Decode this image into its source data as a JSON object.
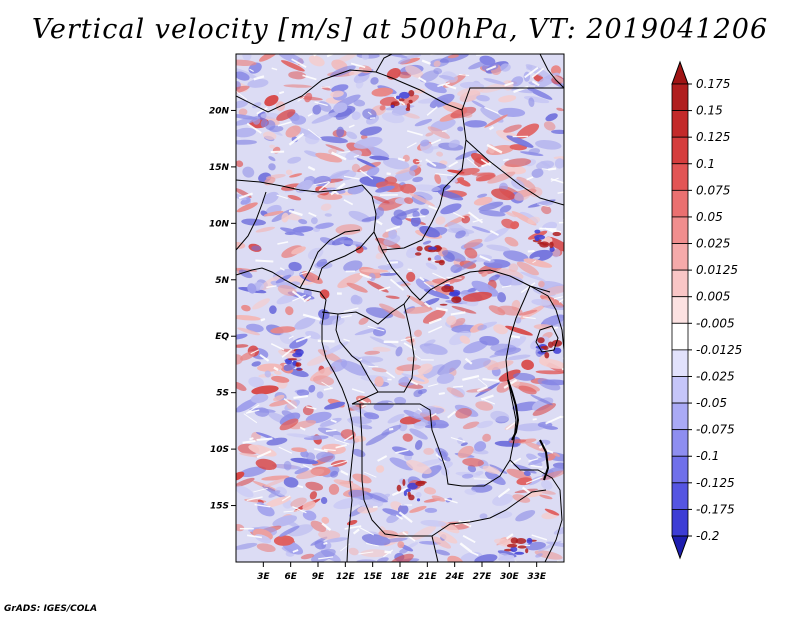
{
  "title": "Vertical velocity [m/s] at 500hPa, VT: 2019041206",
  "credit": "GrADS: IGES/COLA",
  "colors": {
    "map_bg": "#dcdcf4",
    "border": "#000000"
  },
  "map": {
    "lon_range": [
      0,
      36
    ],
    "lat_range": [
      -20,
      25
    ],
    "lon_ticks": [
      {
        "value": 3,
        "label": "3E"
      },
      {
        "value": 6,
        "label": "6E"
      },
      {
        "value": 9,
        "label": "9E"
      },
      {
        "value": 12,
        "label": "12E"
      },
      {
        "value": 15,
        "label": "15E"
      },
      {
        "value": 18,
        "label": "18E"
      },
      {
        "value": 21,
        "label": "21E"
      },
      {
        "value": 24,
        "label": "24E"
      },
      {
        "value": 27,
        "label": "27E"
      },
      {
        "value": 30,
        "label": "30E"
      },
      {
        "value": 33,
        "label": "33E"
      }
    ],
    "lat_ticks": [
      {
        "value": 20,
        "label": "20N"
      },
      {
        "value": 15,
        "label": "15N"
      },
      {
        "value": 10,
        "label": "10N"
      },
      {
        "value": 5,
        "label": "5N"
      },
      {
        "value": 0,
        "label": "EQ"
      },
      {
        "value": -5,
        "label": "5S"
      },
      {
        "value": -10,
        "label": "10S"
      },
      {
        "value": -15,
        "label": "15S"
      }
    ]
  },
  "colorbar": {
    "levels": [
      {
        "label": "0.175",
        "color": "#b01e1e"
      },
      {
        "label": "0.15",
        "color": "#c32a2a"
      },
      {
        "label": "0.125",
        "color": "#d53d3d"
      },
      {
        "label": "0.1",
        "color": "#e25555"
      },
      {
        "label": "0.075",
        "color": "#ea7070"
      },
      {
        "label": "0.05",
        "color": "#f08e8e"
      },
      {
        "label": "0.025",
        "color": "#f5aaaa"
      },
      {
        "label": "0.0125",
        "color": "#f9c6c6"
      },
      {
        "label": "0.005",
        "color": "#fce2e2"
      },
      {
        "label": "-0.005",
        "color": "#ffffff"
      },
      {
        "label": "-0.0125",
        "color": "#e2e2fc"
      },
      {
        "label": "-0.025",
        "color": "#c6c6f9"
      },
      {
        "label": "-0.05",
        "color": "#aaaaf5"
      },
      {
        "label": "-0.075",
        "color": "#8e8ef0"
      },
      {
        "label": "-0.1",
        "color": "#7070ea"
      },
      {
        "label": "-0.125",
        "color": "#5555e2"
      },
      {
        "label": "-0.175",
        "color": "#3d3dd5"
      },
      {
        "label": "-0.2",
        "color": "#2a2ac3"
      }
    ],
    "top_color": "#a01515",
    "bottom_color": "#1e1eb0"
  }
}
